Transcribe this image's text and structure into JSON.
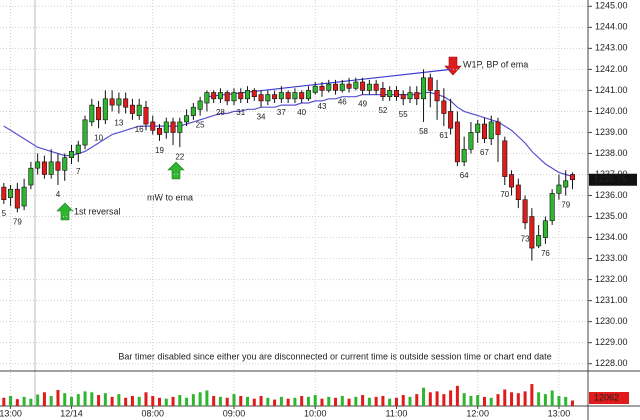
{
  "chart_data": {
    "type": "candlestick",
    "ylim": [
      1227.7,
      1245.3
    ],
    "yticks": [
      {
        "value": 1228,
        "label": "1228.00"
      },
      {
        "value": 1229,
        "label": "1229.00"
      },
      {
        "value": 1230,
        "label": "1230.00"
      },
      {
        "value": 1231,
        "label": "1231.00"
      },
      {
        "value": 1232,
        "label": "1232.00"
      },
      {
        "value": 1233,
        "label": "1233.00"
      },
      {
        "value": 1234,
        "label": "1234.00"
      },
      {
        "value": 1235,
        "label": "1235.00"
      },
      {
        "value": 1236,
        "label": "1236.00"
      },
      {
        "value": 1237,
        "label": "1237.00"
      },
      {
        "value": 1238,
        "label": "1238.00"
      },
      {
        "value": 1239,
        "label": "1239.00"
      },
      {
        "value": 1240,
        "label": "1240.00"
      },
      {
        "value": 1241,
        "label": "1241.00"
      },
      {
        "value": 1242,
        "label": "1242.00"
      },
      {
        "value": 1243,
        "label": "1243.00"
      },
      {
        "value": 1244,
        "label": "1244.00"
      },
      {
        "value": 1245,
        "label": "1245.00"
      }
    ],
    "grid": true,
    "up_color": "#2fb52f",
    "down_color": "#e01b1b",
    "ema_color": "#5a52d0",
    "trendline_color": "#3a3ad0",
    "categories": [
      null,
      "13:00",
      null,
      null,
      null,
      null,
      null,
      null,
      null,
      null,
      "12/14",
      null,
      null,
      null,
      null,
      null,
      null,
      null,
      null,
      null,
      null,
      null,
      "08:00",
      null,
      null,
      null,
      null,
      null,
      null,
      null,
      null,
      null,
      null,
      null,
      "09:00",
      null,
      null,
      null,
      null,
      null,
      null,
      null,
      null,
      null,
      null,
      null,
      "10:00",
      null,
      null,
      null,
      null,
      null,
      null,
      null,
      null,
      null,
      null,
      null,
      "11:00",
      null,
      null,
      null,
      null,
      null,
      null,
      null,
      null,
      null,
      null,
      null,
      "12:00",
      null,
      null,
      null,
      null,
      null,
      null,
      null,
      null,
      null,
      null,
      null,
      "13:00",
      null,
      null
    ],
    "bar_numbers": [
      5,
      null,
      79,
      null,
      null,
      null,
      null,
      null,
      4,
      null,
      null,
      7,
      null,
      null,
      10,
      null,
      null,
      13,
      null,
      null,
      16,
      null,
      null,
      19,
      null,
      null,
      22,
      null,
      null,
      25,
      null,
      null,
      28,
      null,
      null,
      31,
      null,
      null,
      34,
      null,
      null,
      37,
      null,
      null,
      40,
      null,
      null,
      43,
      null,
      null,
      46,
      null,
      null,
      49,
      null,
      null,
      52,
      null,
      null,
      55,
      null,
      null,
      58,
      null,
      null,
      61,
      null,
      null,
      64,
      null,
      null,
      67,
      null,
      null,
      70,
      null,
      null,
      73,
      null,
      null,
      76,
      null,
      null,
      79,
      null
    ],
    "open": [
      1236.4,
      1235.9,
      1236.3,
      1235.5,
      1236.5,
      1237.3,
      1237.6,
      1237.0,
      1237.6,
      1237.2,
      1237.8,
      1238.0,
      1238.4,
      1239.5,
      1240.2,
      1239.6,
      1240.6,
      1240.3,
      1240.6,
      1240.3,
      1239.8,
      1240.2,
      1239.5,
      1239.2,
      1239.0,
      1239.5,
      1239.0,
      1239.5,
      1239.8,
      1240.1,
      1240.4,
      1240.9,
      1240.6,
      1240.9,
      1240.5,
      1240.9,
      1240.6,
      1241.0,
      1240.8,
      1240.5,
      1240.8,
      1240.6,
      1240.9,
      1240.6,
      1240.9,
      1240.6,
      1240.9,
      1241.2,
      1241.0,
      1241.3,
      1241.0,
      1241.3,
      1241.1,
      1241.4,
      1241.0,
      1241.3,
      1241.1,
      1240.7,
      1241.0,
      1240.8,
      1240.6,
      1240.9,
      1240.6,
      1241.6,
      1241.0,
      1240.5,
      1240.0,
      1239.5,
      1237.6,
      1238.2,
      1239.0,
      1239.4,
      1238.7,
      1239.5,
      1238.6,
      1237.0,
      1236.5,
      1235.8,
      1235.0,
      1233.6,
      1234.0,
      1234.8,
      1236.1,
      1236.4,
      1237.0
    ],
    "high": [
      1236.6,
      1236.5,
      1236.6,
      1236.8,
      1237.6,
      1238.0,
      1237.9,
      1238.2,
      1238.0,
      1238.0,
      1238.4,
      1238.6,
      1239.8,
      1240.6,
      1240.5,
      1241.0,
      1241.0,
      1240.9,
      1240.9,
      1240.6,
      1240.6,
      1240.5,
      1239.8,
      1239.4,
      1239.7,
      1239.7,
      1239.7,
      1240.1,
      1240.4,
      1240.7,
      1241.0,
      1241.0,
      1241.1,
      1241.0,
      1241.1,
      1241.1,
      1241.2,
      1241.1,
      1241.0,
      1241.0,
      1241.0,
      1241.2,
      1241.0,
      1241.1,
      1241.0,
      1241.2,
      1241.4,
      1241.4,
      1241.5,
      1241.5,
      1241.5,
      1241.6,
      1241.6,
      1241.6,
      1241.5,
      1241.5,
      1241.4,
      1241.2,
      1241.2,
      1241.0,
      1241.2,
      1241.2,
      1242.0,
      1241.8,
      1241.5,
      1241.1,
      1240.6,
      1240.0,
      1238.8,
      1239.5,
      1239.6,
      1239.7,
      1239.8,
      1239.7,
      1238.8,
      1237.2,
      1236.8,
      1236.0,
      1235.4,
      1234.6,
      1235.0,
      1236.3,
      1237.0,
      1237.2,
      1237.1
    ],
    "low": [
      1235.6,
      1235.5,
      1235.2,
      1235.3,
      1236.3,
      1237.0,
      1236.8,
      1236.8,
      1236.5,
      1236.7,
      1237.5,
      1237.6,
      1238.2,
      1239.3,
      1239.2,
      1239.4,
      1240.0,
      1239.9,
      1239.9,
      1239.6,
      1239.6,
      1239.1,
      1238.9,
      1238.6,
      1238.7,
      1238.4,
      1238.3,
      1239.3,
      1239.6,
      1239.8,
      1240.0,
      1240.4,
      1240.4,
      1240.3,
      1240.3,
      1240.4,
      1240.4,
      1240.5,
      1240.2,
      1240.3,
      1240.4,
      1240.4,
      1240.4,
      1240.4,
      1240.4,
      1240.5,
      1240.8,
      1240.7,
      1240.9,
      1240.8,
      1240.9,
      1240.9,
      1241.0,
      1240.8,
      1240.8,
      1240.8,
      1240.5,
      1240.5,
      1240.5,
      1240.3,
      1240.4,
      1240.3,
      1239.5,
      1240.2,
      1239.6,
      1239.3,
      1238.9,
      1237.4,
      1237.4,
      1238.0,
      1238.5,
      1238.5,
      1238.4,
      1237.6,
      1236.5,
      1236.0,
      1235.4,
      1234.4,
      1232.9,
      1233.5,
      1233.7,
      1234.6,
      1235.8,
      1236.0,
      1236.3
    ],
    "close": [
      1235.8,
      1236.3,
      1235.4,
      1236.4,
      1237.3,
      1237.6,
      1237.0,
      1237.6,
      1237.2,
      1237.8,
      1238.1,
      1238.4,
      1239.6,
      1240.3,
      1239.6,
      1240.6,
      1240.3,
      1240.6,
      1240.2,
      1239.9,
      1240.3,
      1239.4,
      1239.1,
      1238.9,
      1239.5,
      1239.0,
      1239.5,
      1239.8,
      1240.2,
      1240.5,
      1240.9,
      1240.6,
      1240.9,
      1240.5,
      1240.9,
      1240.6,
      1241.0,
      1240.7,
      1240.5,
      1240.8,
      1240.6,
      1240.9,
      1240.6,
      1240.9,
      1240.6,
      1241.0,
      1241.2,
      1241.0,
      1241.3,
      1241.0,
      1241.3,
      1241.1,
      1241.4,
      1241.0,
      1241.3,
      1241.0,
      1240.7,
      1241.0,
      1240.7,
      1240.6,
      1240.9,
      1240.6,
      1241.6,
      1241.0,
      1240.5,
      1239.9,
      1239.2,
      1237.6,
      1238.2,
      1239.0,
      1239.4,
      1238.7,
      1239.5,
      1238.9,
      1236.9,
      1236.4,
      1235.8,
      1234.7,
      1233.5,
      1234.1,
      1234.8,
      1236.1,
      1236.5,
      1236.7,
      1236.75
    ],
    "ema": [
      1239.3,
      1239.1,
      1238.9,
      1238.7,
      1238.5,
      1238.3,
      1238.2,
      1238.1,
      1238.0,
      1237.9,
      1237.9,
      1238.0,
      1238.1,
      1238.3,
      1238.5,
      1238.7,
      1238.9,
      1239.0,
      1239.1,
      1239.2,
      1239.3,
      1239.3,
      1239.3,
      1239.3,
      1239.3,
      1239.3,
      1239.3,
      1239.4,
      1239.5,
      1239.6,
      1239.7,
      1239.8,
      1239.9,
      1239.9,
      1240.0,
      1240.0,
      1240.1,
      1240.1,
      1240.2,
      1240.2,
      1240.2,
      1240.3,
      1240.3,
      1240.3,
      1240.4,
      1240.4,
      1240.5,
      1240.5,
      1240.6,
      1240.6,
      1240.7,
      1240.7,
      1240.7,
      1240.8,
      1240.8,
      1240.8,
      1240.8,
      1240.8,
      1240.8,
      1240.8,
      1240.8,
      1240.8,
      1240.9,
      1240.9,
      1240.8,
      1240.7,
      1240.5,
      1240.2,
      1240.0,
      1239.9,
      1239.8,
      1239.7,
      1239.6,
      1239.5,
      1239.3,
      1239.1,
      1238.8,
      1238.5,
      1238.1,
      1237.8,
      1237.5,
      1237.3,
      1237.1,
      1237.0,
      1236.9
    ],
    "trendline": {
      "x": [
        30,
        66
      ],
      "y": [
        1240.7,
        1242.0
      ]
    },
    "volume": [
      18000,
      22000,
      15000,
      20000,
      16000,
      25000,
      30000,
      22000,
      35000,
      28000,
      20000,
      26000,
      32000,
      30000,
      24000,
      28000,
      20000,
      26000,
      18000,
      22000,
      20000,
      30000,
      22000,
      18000,
      16000,
      20000,
      24000,
      18000,
      26000,
      30000,
      34000,
      22000,
      20000,
      18000,
      26000,
      22000,
      20000,
      16000,
      22000,
      18000,
      14000,
      20000,
      16000,
      18000,
      22000,
      20000,
      24000,
      16000,
      20000,
      18000,
      22000,
      16000,
      20000,
      24000,
      18000,
      20000,
      22000,
      16000,
      18000,
      24000,
      20000,
      26000,
      40000,
      30000,
      32000,
      26000,
      34000,
      44000,
      28000,
      22000,
      24000,
      20000,
      18000,
      26000,
      36000,
      30000,
      28000,
      32000,
      48000,
      30000,
      26000,
      34000,
      22000,
      20000,
      12062
    ],
    "vlim": [
      0,
      70000
    ],
    "annotations": [
      "1st reversal",
      "mW to ema",
      "W1P, BP of ema"
    ],
    "status_message": "Bar timer disabled since either you are disconnected or current time is outside session time or chart end date"
  }
}
